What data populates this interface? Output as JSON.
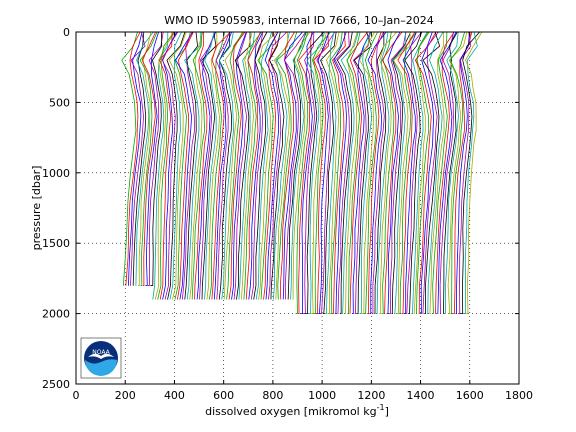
{
  "chart_data": {
    "type": "line",
    "title": "WMO ID 5905983, internal ID 7666, 10–Jan–2024",
    "xlabel_prefix": "dissolved oxygen [mikromol kg",
    "xlabel_superscript": "-1",
    "xlabel_suffix": "]",
    "ylabel": "pressure [dbar]",
    "xlim": [
      0,
      1800
    ],
    "ylim": [
      2500,
      0
    ],
    "y_reversed": true,
    "grid": "dotted",
    "xticks": [
      0,
      200,
      400,
      600,
      800,
      1000,
      1200,
      1400,
      1600,
      1800
    ],
    "yticks": [
      0,
      500,
      1000,
      1500,
      2000,
      2500
    ],
    "profile_depth": [
      0,
      100,
      200,
      300,
      400,
      500,
      600,
      700,
      800,
      1000,
      1200,
      1400,
      1600,
      1800,
      2000
    ],
    "profile_offsets_note": "",
    "series": [
      {
        "offset": 0,
        "max_depth": 1800,
        "color": "#00aa00"
      },
      {
        "offset": 10,
        "max_depth": 1800,
        "color": "#ff0000"
      },
      {
        "offset": 20,
        "max_depth": 1800,
        "color": "#0000ff"
      },
      {
        "offset": 30,
        "max_depth": 1900,
        "color": "#aa00aa"
      },
      {
        "offset": 40,
        "max_depth": 1900,
        "color": "#000000"
      },
      {
        "offset": 50,
        "max_depth": 1900,
        "color": "#00aaaa"
      },
      {
        "offset": 60,
        "max_depth": 1900,
        "color": "#aaaa00"
      },
      {
        "offset": 70,
        "max_depth": 1900,
        "color": "#00aa00"
      },
      {
        "offset": 80,
        "max_depth": 1900,
        "color": "#ff0000"
      },
      {
        "offset": 90,
        "max_depth": 1900,
        "color": "#0000ff"
      }
    ],
    "profile_shape": [
      250,
      230,
      200,
      215,
      225,
      235,
      240,
      238,
      232,
      220,
      212,
      206,
      202,
      198,
      196
    ],
    "n_profiles": 140,
    "offset_step": 10,
    "colors": [
      "#00aa00",
      "#ff0000",
      "#0000ff",
      "#aa00aa",
      "#000000",
      "#00aaaa",
      "#aaaa00"
    ]
  },
  "logo": {
    "text": "NOAA",
    "colors": {
      "outer": "#0a2f7a",
      "wave": "#2ea8e6",
      "bird": "#ffffff"
    }
  }
}
